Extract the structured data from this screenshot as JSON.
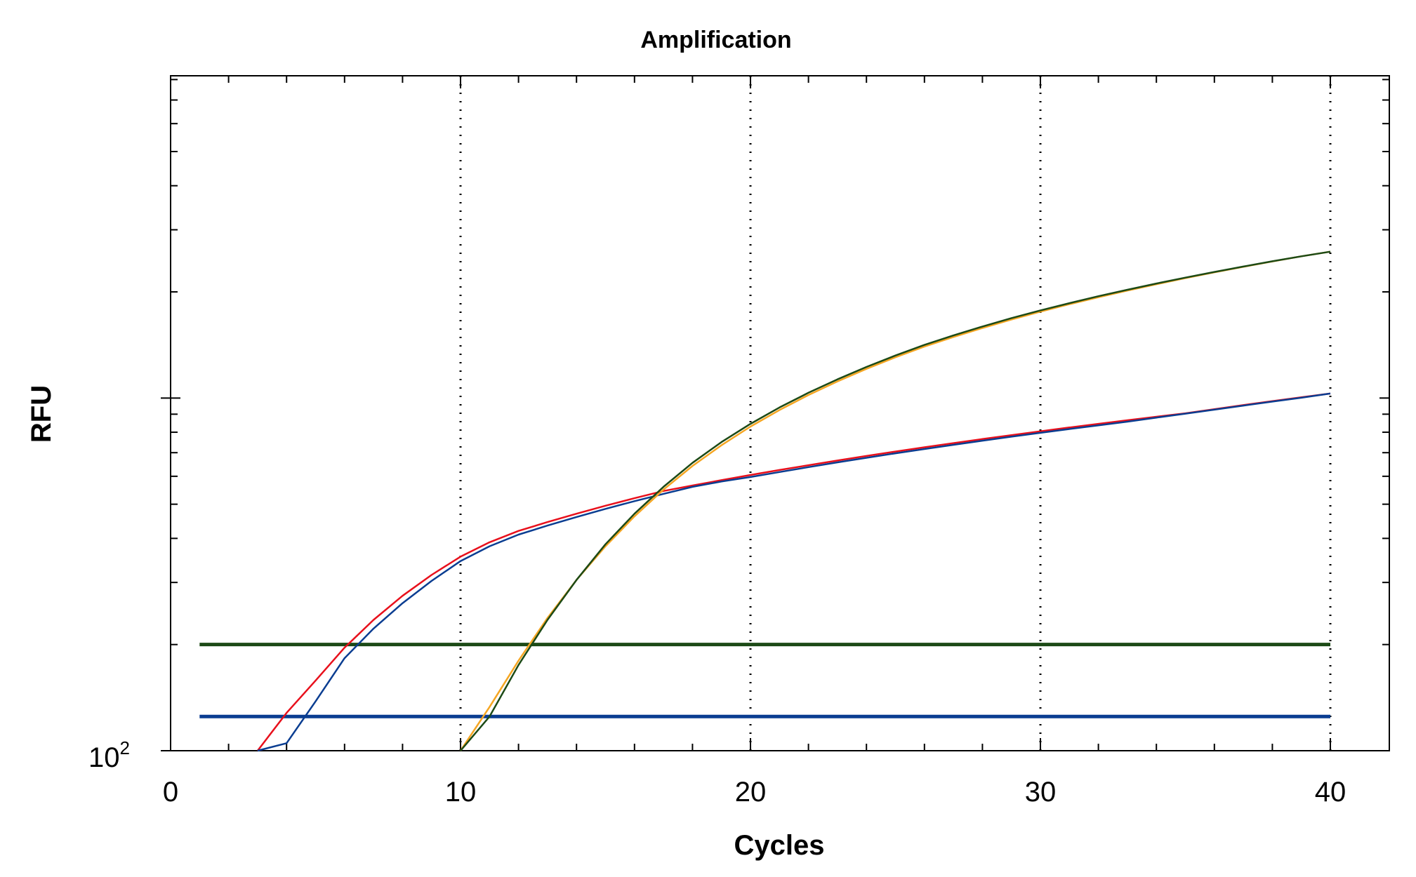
{
  "chart_data": {
    "type": "line",
    "title": "Amplification",
    "xlabel": "Cycles",
    "ylabel": "RFU",
    "xlim": [
      0,
      42
    ],
    "xticks": [
      0,
      10,
      20,
      30,
      40
    ],
    "y_scale": "log",
    "ylim": [
      100,
      8200
    ],
    "y_tick_label": {
      "base": "10",
      "exponent": "2"
    },
    "grid": {
      "x": "dotted vertical at 10, 20, 30, 40",
      "y": false
    },
    "legend": "none",
    "series": [
      {
        "color": "#e8101c",
        "x": [
          3,
          4,
          5,
          6,
          7,
          8,
          9,
          10,
          11,
          12,
          13,
          14,
          15,
          16,
          17,
          18,
          19,
          20,
          21,
          22,
          23,
          24,
          25,
          26,
          27,
          28,
          29,
          30,
          31,
          32,
          33,
          34,
          35,
          36,
          37,
          38,
          39,
          40
        ],
        "values": [
          100,
          128,
          158,
          196,
          235,
          275,
          315,
          355,
          390,
          420,
          445,
          470,
          495,
          520,
          545,
          565,
          585,
          605,
          625,
          645,
          665,
          685,
          705,
          725,
          745,
          765,
          785,
          805,
          825,
          845,
          865,
          885,
          905,
          930,
          955,
          980,
          1005,
          1030
        ]
      },
      {
        "color": "#0a3d91",
        "x": [
          3,
          4,
          5,
          6,
          7,
          8,
          9,
          10,
          11,
          12,
          13,
          14,
          15,
          16,
          17,
          18,
          19,
          20,
          21,
          22,
          23,
          24,
          25,
          26,
          27,
          28,
          29,
          30,
          31,
          32,
          33,
          34,
          35,
          36,
          37,
          38,
          39,
          40
        ],
        "values": [
          100,
          105,
          138,
          183,
          222,
          262,
          303,
          345,
          380,
          410,
          435,
          460,
          485,
          510,
          535,
          560,
          580,
          597,
          617,
          637,
          657,
          677,
          697,
          717,
          737,
          757,
          777,
          797,
          817,
          837,
          857,
          880,
          903,
          927,
          952,
          977,
          1002,
          1030
        ]
      },
      {
        "color": "#f5a623",
        "x": [
          10,
          11,
          12,
          13,
          14,
          15,
          16,
          17,
          18,
          19,
          20,
          21,
          22,
          23,
          24,
          25,
          26,
          27,
          28,
          29,
          30,
          31,
          32,
          33,
          34,
          35,
          36,
          37,
          38,
          39,
          40
        ],
        "values": [
          100,
          133,
          180,
          238,
          305,
          380,
          462,
          550,
          642,
          735,
          830,
          925,
          1020,
          1115,
          1210,
          1305,
          1400,
          1490,
          1580,
          1670,
          1758,
          1845,
          1932,
          2018,
          2103,
          2188,
          2272,
          2356,
          2440,
          2523,
          2600
        ]
      },
      {
        "color": "#1c4a16",
        "x": [
          10,
          11,
          12,
          13,
          14,
          15,
          16,
          17,
          18,
          19,
          20,
          21,
          22,
          23,
          24,
          25,
          26,
          27,
          28,
          29,
          30,
          31,
          32,
          33,
          34,
          35,
          36,
          37,
          38,
          39,
          40
        ],
        "values": [
          100,
          125,
          175,
          235,
          305,
          385,
          470,
          560,
          655,
          750,
          845,
          940,
          1035,
          1130,
          1225,
          1320,
          1415,
          1505,
          1595,
          1685,
          1772,
          1858,
          1944,
          2028,
          2112,
          2195,
          2278,
          2360,
          2442,
          2523,
          2600
        ]
      }
    ],
    "threshold_lines": [
      {
        "color": "#1c4a16",
        "value": 200,
        "x_range": [
          1,
          40
        ]
      },
      {
        "color": "#0a3d91",
        "value": 125,
        "x_range": [
          1,
          40
        ]
      }
    ]
  }
}
